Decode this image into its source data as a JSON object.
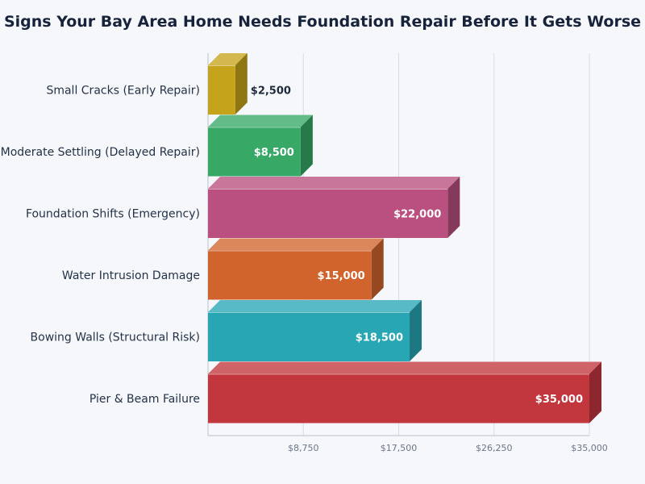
{
  "chart_data": {
    "type": "bar",
    "orientation": "horizontal",
    "title": "Signs Your Bay Area Home Needs Foundation Repair Before It Gets Worse",
    "xlabel": "",
    "ylabel": "",
    "categories": [
      "Small Cracks (Early Repair)",
      "Moderate Settling (Delayed Repair)",
      "Foundation Shifts (Emergency)",
      "Water Intrusion Damage",
      "Bowing Walls (Structural Risk)",
      "Pier & Beam Failure"
    ],
    "values": [
      2500,
      8500,
      22000,
      15000,
      18500,
      35000
    ],
    "value_labels": [
      "$2,500",
      "$8,500",
      "$22,000",
      "$15,000",
      "$18,500",
      "$35,000"
    ],
    "xlim": [
      0,
      35000
    ],
    "xticks": [
      8750,
      17500,
      26250,
      35000
    ],
    "xtick_labels": [
      "$8,750",
      "$17,500",
      "$26,250",
      "$35,000"
    ],
    "grid": true,
    "legend": "none",
    "style": "3d",
    "colors": [
      "#c5a41b",
      "#37a866",
      "#b9507f",
      "#d1642d",
      "#28a6b4",
      "#c2373e"
    ]
  }
}
